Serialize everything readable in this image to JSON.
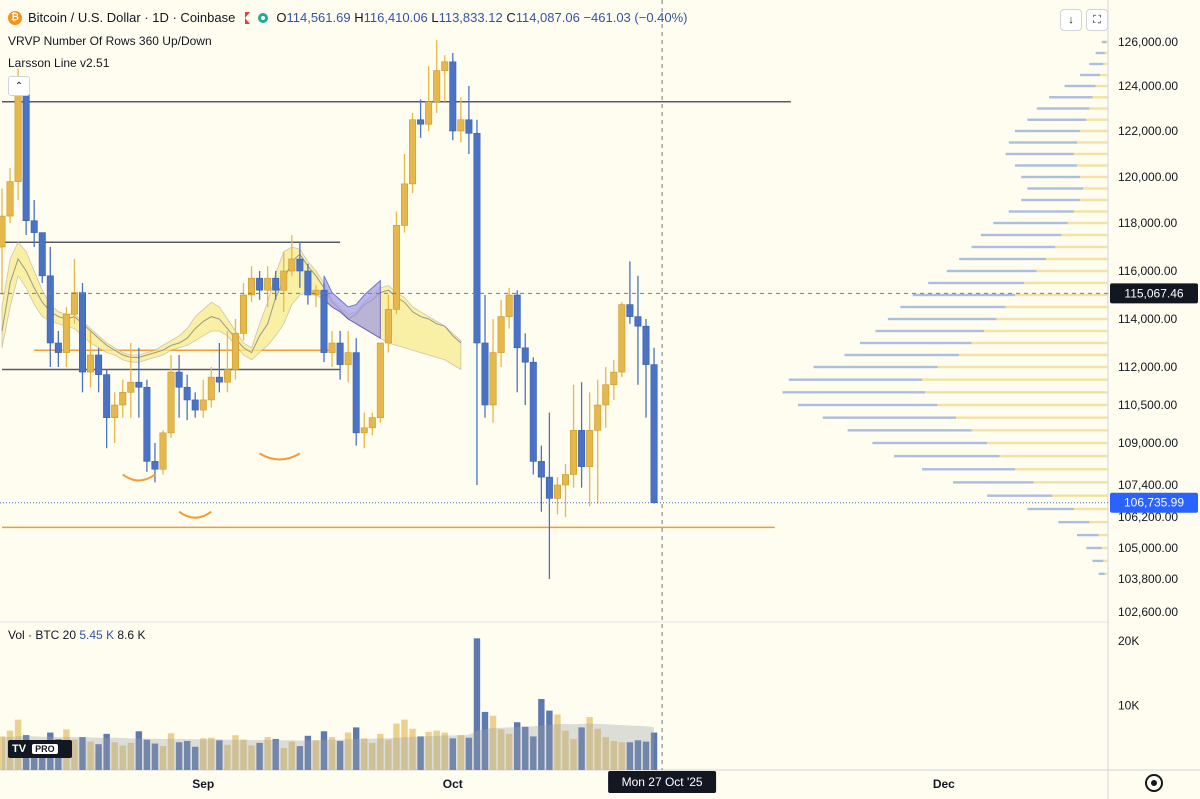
{
  "header": {
    "title": "Bitcoin / U.S. Dollar · 1D · Coinbase",
    "coin_icon": "bitcoin-icon",
    "ohlc": {
      "o_label": "O",
      "o": "114,561.69",
      "h_label": "H",
      "h": "116,410.06",
      "l_label": "L",
      "l": "113,833.12",
      "c_label": "C",
      "c": "114,087.06",
      "change": "−461.03 (−0.40%)"
    }
  },
  "indicators": [
    "VRVP Number Of Rows 360 Up/Down",
    "Larsson Line v2.51"
  ],
  "buttons": {
    "collapse": "⌃",
    "download": "↓",
    "fullscreen": "⛶"
  },
  "volume_legend": {
    "label": "Vol · BTC 20",
    "value1": "5.45 K",
    "value2": "8.6 K"
  },
  "logo": {
    "mark": "TV",
    "pro": "PRO"
  },
  "colors": {
    "up": "#e6b84c",
    "down": "#4a72c5",
    "background": "#fffdf0",
    "orange": "#f39c33",
    "vwap_yellow": "#f7ec8c",
    "vwap_purple": "#9e9aeb"
  },
  "chart_data": {
    "type": "candlestick",
    "y_price_ticks": [
      "126,000.00",
      "124,000.00",
      "122,000.00",
      "120,000.00",
      "118,000.00",
      "116,000.00",
      "114,000.00",
      "112,000.00",
      "110,500.00",
      "109,000.00",
      "107,400.00",
      "106,200.00",
      "105,000.00",
      "103,800.00",
      "102,600.00"
    ],
    "y_price_values": [
      126000,
      124000,
      122000,
      120000,
      118000,
      116000,
      114000,
      112000,
      110500,
      109000,
      107400,
      106200,
      105000,
      103800,
      102600
    ],
    "x_labels": [
      "Sep",
      "Oct",
      "Dec"
    ],
    "x_label_days": [
      59,
      90,
      151
    ],
    "crosshair_label": "Mon 27 Oct '25",
    "crosshair_day": 116,
    "crosshair_price": {
      "label": "115,067.46",
      "value": 115067.46
    },
    "last_price": {
      "label": "106,735.99",
      "value": 106735.99
    },
    "volume_ticks": [
      "20K",
      "10K"
    ],
    "volume_tick_values": [
      20000,
      10000
    ],
    "start_day": 34,
    "candles": [
      [
        117000,
        119500,
        115000,
        118300
      ],
      [
        118300,
        120400,
        118000,
        119800
      ],
      [
        119800,
        124800,
        119000,
        124100
      ],
      [
        124100,
        124400,
        117500,
        118100
      ],
      [
        118100,
        119000,
        117000,
        117600
      ],
      [
        117600,
        117500,
        115500,
        115800
      ],
      [
        115800,
        117000,
        112000,
        113000
      ],
      [
        113000,
        113500,
        112000,
        112600
      ],
      [
        112600,
        114500,
        112000,
        114200
      ],
      [
        114200,
        116500,
        113800,
        115100
      ],
      [
        115100,
        115500,
        111000,
        111800
      ],
      [
        111800,
        113500,
        111200,
        112500
      ],
      [
        112500,
        112800,
        111000,
        111700
      ],
      [
        111700,
        111900,
        108800,
        110000
      ],
      [
        110000,
        111000,
        109000,
        110500
      ],
      [
        110500,
        111500,
        110000,
        111000
      ],
      [
        111000,
        113000,
        110000,
        111400
      ],
      [
        111400,
        112800,
        110000,
        111200
      ],
      [
        111200,
        111500,
        107900,
        108300
      ],
      [
        108300,
        109000,
        107500,
        108000
      ],
      [
        108000,
        109500,
        107800,
        109400
      ],
      [
        109400,
        112500,
        109200,
        111800
      ],
      [
        111800,
        112500,
        110000,
        111200
      ],
      [
        111200,
        111700,
        109900,
        110700
      ],
      [
        110700,
        111000,
        110000,
        110300
      ],
      [
        110300,
        111500,
        110000,
        110700
      ],
      [
        110700,
        112000,
        110400,
        111600
      ],
      [
        111600,
        113000,
        111000,
        111400
      ],
      [
        111400,
        113500,
        111000,
        111900
      ],
      [
        111900,
        114000,
        111500,
        113400
      ],
      [
        113400,
        115500,
        113100,
        115000
      ],
      [
        115000,
        116200,
        114700,
        115700
      ],
      [
        115700,
        116000,
        114800,
        115200
      ],
      [
        115200,
        116200,
        114500,
        115700
      ],
      [
        115700,
        116000,
        114800,
        115200
      ],
      [
        115200,
        116800,
        114300,
        116000
      ],
      [
        116000,
        117500,
        115800,
        116500
      ],
      [
        116500,
        117200,
        115300,
        116000
      ],
      [
        116000,
        116300,
        114600,
        115000
      ],
      [
        115000,
        115400,
        114500,
        115200
      ],
      [
        115200,
        115500,
        112200,
        112600
      ],
      [
        112600,
        113500,
        112000,
        113000
      ],
      [
        113000,
        113500,
        111500,
        112100
      ],
      [
        112100,
        113500,
        111400,
        112600
      ],
      [
        112600,
        113200,
        108900,
        109400
      ],
      [
        109400,
        110200,
        108800,
        109600
      ],
      [
        109600,
        110200,
        109300,
        110000
      ],
      [
        110000,
        113000,
        109800,
        113000
      ],
      [
        113000,
        115000,
        112600,
        114400
      ],
      [
        114400,
        118500,
        114200,
        117900
      ],
      [
        117900,
        121000,
        117600,
        119700
      ],
      [
        119700,
        122800,
        119300,
        122500
      ],
      [
        122500,
        123400,
        121700,
        122300
      ],
      [
        122300,
        124900,
        122000,
        123300
      ],
      [
        123300,
        126100,
        122800,
        124700
      ],
      [
        124700,
        125400,
        123300,
        125100
      ],
      [
        125100,
        125500,
        121600,
        122000
      ],
      [
        122000,
        123500,
        121500,
        122500
      ],
      [
        122500,
        124000,
        121000,
        121900
      ],
      [
        121900,
        122500,
        107400,
        113000
      ],
      [
        113000,
        115000,
        110000,
        110500
      ],
      [
        110500,
        114000,
        109800,
        112600
      ],
      [
        112600,
        114800,
        112000,
        114100
      ],
      [
        114100,
        115300,
        113600,
        115000
      ],
      [
        115000,
        115200,
        111000,
        112800
      ],
      [
        112800,
        113400,
        110500,
        112200
      ],
      [
        112200,
        112400,
        107800,
        108300
      ],
      [
        108300,
        108900,
        106400,
        107700
      ],
      [
        107700,
        110200,
        103800,
        106900
      ],
      [
        106900,
        107700,
        106300,
        107400
      ],
      [
        107400,
        108200,
        106200,
        107800
      ],
      [
        107800,
        111300,
        107300,
        109500
      ],
      [
        109500,
        111400,
        107300,
        108100
      ],
      [
        108100,
        111000,
        106600,
        109500
      ],
      [
        109500,
        111500,
        106700,
        110500
      ],
      [
        110500,
        112000,
        109600,
        111300
      ],
      [
        111300,
        112300,
        110700,
        111800
      ],
      [
        111800,
        114700,
        111600,
        114600
      ],
      [
        114600,
        116400,
        113800,
        114100
      ],
      [
        114100,
        115800,
        111300,
        113700
      ],
      [
        113700,
        114000,
        110000,
        112100
      ],
      [
        112100,
        112800,
        106700,
        106735.99
      ]
    ],
    "volumes": [
      5200,
      6100,
      7800,
      5400,
      4600,
      3900,
      5800,
      4800,
      6300,
      4700,
      5100,
      4400,
      4000,
      5600,
      4300,
      3800,
      4200,
      6000,
      4700,
      4100,
      3700,
      5700,
      4300,
      4500,
      3600,
      4900,
      5000,
      4600,
      3900,
      5400,
      4700,
      3800,
      4200,
      5100,
      4800,
      3400,
      4400,
      3700,
      5300,
      4600,
      6000,
      5100,
      4500,
      5800,
      6600,
      4900,
      4200,
      5600,
      4700,
      7200,
      7800,
      6400,
      5200,
      5900,
      6100,
      5800,
      4900,
      5400,
      5000,
      20400,
      9000,
      8400,
      6300,
      5600,
      7400,
      6700,
      5200,
      11000,
      9200,
      8600,
      6100,
      4800,
      6600,
      8200,
      6400,
      5100,
      4500,
      4300,
      4300,
      4600,
      4400,
      5800
    ],
    "ma_volume": [
      5100,
      5150,
      5200,
      5250,
      5200,
      5150,
      5150,
      5100,
      5150,
      5100,
      5100,
      5050,
      5000,
      5000,
      5000,
      4950,
      4900,
      4900,
      4850,
      4850,
      4800,
      4850,
      4800,
      4800,
      4750,
      4750,
      4750,
      4750,
      4700,
      4700,
      4700,
      4650,
      4650,
      4650,
      4650,
      4600,
      4600,
      4550,
      4600,
      4600,
      4650,
      4700,
      4700,
      4750,
      4800,
      4850,
      4850,
      4900,
      4900,
      5000,
      5100,
      5150,
      5200,
      5250,
      5300,
      5350,
      5350,
      5400,
      5450,
      6100,
      6300,
      6500,
      6550,
      6600,
      6650,
      6700,
      6750,
      6900,
      7000,
      7100,
      7150,
      7100,
      7150,
      7200,
      7150,
      7100,
      7000,
      6950,
      6900,
      6850,
      6800,
      6600
    ],
    "profile_rows": [
      [
        126000,
        1,
        4
      ],
      [
        125500,
        2,
        8
      ],
      [
        125000,
        3,
        12
      ],
      [
        124500,
        5,
        18
      ],
      [
        124000,
        8,
        28
      ],
      [
        123500,
        10,
        38
      ],
      [
        123000,
        12,
        46
      ],
      [
        122500,
        14,
        52
      ],
      [
        122000,
        18,
        60
      ],
      [
        121500,
        20,
        64
      ],
      [
        121000,
        22,
        66
      ],
      [
        120500,
        20,
        60
      ],
      [
        120000,
        18,
        56
      ],
      [
        119500,
        16,
        52
      ],
      [
        119000,
        18,
        56
      ],
      [
        118500,
        22,
        64
      ],
      [
        118000,
        26,
        74
      ],
      [
        117500,
        30,
        82
      ],
      [
        117000,
        34,
        88
      ],
      [
        116500,
        40,
        96
      ],
      [
        116000,
        46,
        104
      ],
      [
        115500,
        54,
        116
      ],
      [
        115000,
        60,
        126
      ],
      [
        114500,
        66,
        134
      ],
      [
        114000,
        72,
        142
      ],
      [
        113500,
        80,
        150
      ],
      [
        113000,
        88,
        160
      ],
      [
        112500,
        96,
        170
      ],
      [
        112000,
        110,
        190
      ],
      [
        111500,
        120,
        206
      ],
      [
        111000,
        118,
        210
      ],
      [
        110500,
        110,
        200
      ],
      [
        110000,
        98,
        184
      ],
      [
        109500,
        88,
        168
      ],
      [
        109000,
        78,
        152
      ],
      [
        108500,
        70,
        138
      ],
      [
        108000,
        60,
        120
      ],
      [
        107500,
        48,
        100
      ],
      [
        107000,
        36,
        78
      ],
      [
        106500,
        22,
        52
      ],
      [
        106000,
        12,
        32
      ],
      [
        105500,
        6,
        20
      ],
      [
        105000,
        4,
        14
      ],
      [
        104500,
        3,
        10
      ],
      [
        104000,
        2,
        6
      ]
    ],
    "vwap_yellow_mid": [
      113500,
      115500,
      116500,
      116000,
      115300,
      114700,
      114300,
      114100,
      114000,
      114100,
      113800,
      113500,
      113200,
      112900,
      112700,
      112500,
      112400,
      112400,
      112500,
      112600,
      112700,
      112900,
      113000,
      113200,
      113600,
      113900,
      114100,
      114000,
      113600,
      113200,
      112800,
      112600,
      113300,
      113800,
      114900,
      115600,
      116400,
      116700,
      116200,
      115800,
      115300,
      114700,
      114400,
      114000,
      114200,
      114600,
      114800,
      115100,
      115200,
      114900,
      114700,
      114300,
      114100,
      114000,
      113800,
      113700,
      113300,
      113000
    ],
    "vwap_cloud_upper": [
      114500,
      116500,
      117200,
      116800,
      116000,
      115200,
      114600,
      114300,
      114200,
      114200,
      113900,
      113600,
      113300,
      113000,
      112800,
      112600,
      112500,
      112500,
      112600,
      112700,
      112900,
      113100,
      113300,
      113600,
      114100,
      114400,
      114700,
      114500,
      114000,
      113500,
      113000,
      112800,
      113800,
      114700,
      115900,
      116800,
      117000,
      116900,
      116400,
      116000,
      115500,
      114800,
      114500,
      114200,
      114300,
      114700,
      115000,
      115300,
      115400,
      115100,
      114900,
      114500,
      114300,
      114100,
      113900,
      113700,
      113400,
      113100
    ],
    "vwap_cloud_lower": [
      112800,
      114500,
      115800,
      115300,
      114600,
      114100,
      113900,
      113800,
      113700,
      113600,
      113300,
      113000,
      112800,
      112600,
      112500,
      112300,
      112200,
      112200,
      112300,
      112400,
      112500,
      112700,
      112800,
      112900,
      113100,
      113300,
      113500,
      113500,
      113300,
      112900,
      112500,
      112300,
      112600,
      112900,
      113300,
      113800,
      114600,
      115000,
      115100,
      115000,
      114800,
      114500,
      114300,
      114000,
      113800,
      113600,
      113400,
      113200,
      113000,
      112900,
      112800,
      112700,
      112600,
      112500,
      112400,
      112300,
      112100,
      111900
    ],
    "horizontal_lines": [
      {
        "y": 123300,
        "x_from_day": 34,
        "x_to_day": 132,
        "color": "#555a66"
      },
      {
        "y": 117200,
        "x_from_day": 34,
        "x_to_day": 76,
        "color": "#555a66"
      },
      {
        "y": 111900,
        "x_from_day": 34,
        "x_to_day": 76,
        "color": "#555a66"
      },
      {
        "y": 112700,
        "x_from_day": 38,
        "x_to_day": 75,
        "color": "#f39c33"
      },
      {
        "y": 105800,
        "x_from_day": 34,
        "x_to_day": 130,
        "color": "#f39c33"
      }
    ],
    "arcs_days": [
      [
        49,
        53,
        107800
      ],
      [
        56,
        60,
        106400
      ],
      [
        66,
        71,
        108600
      ]
    ]
  }
}
